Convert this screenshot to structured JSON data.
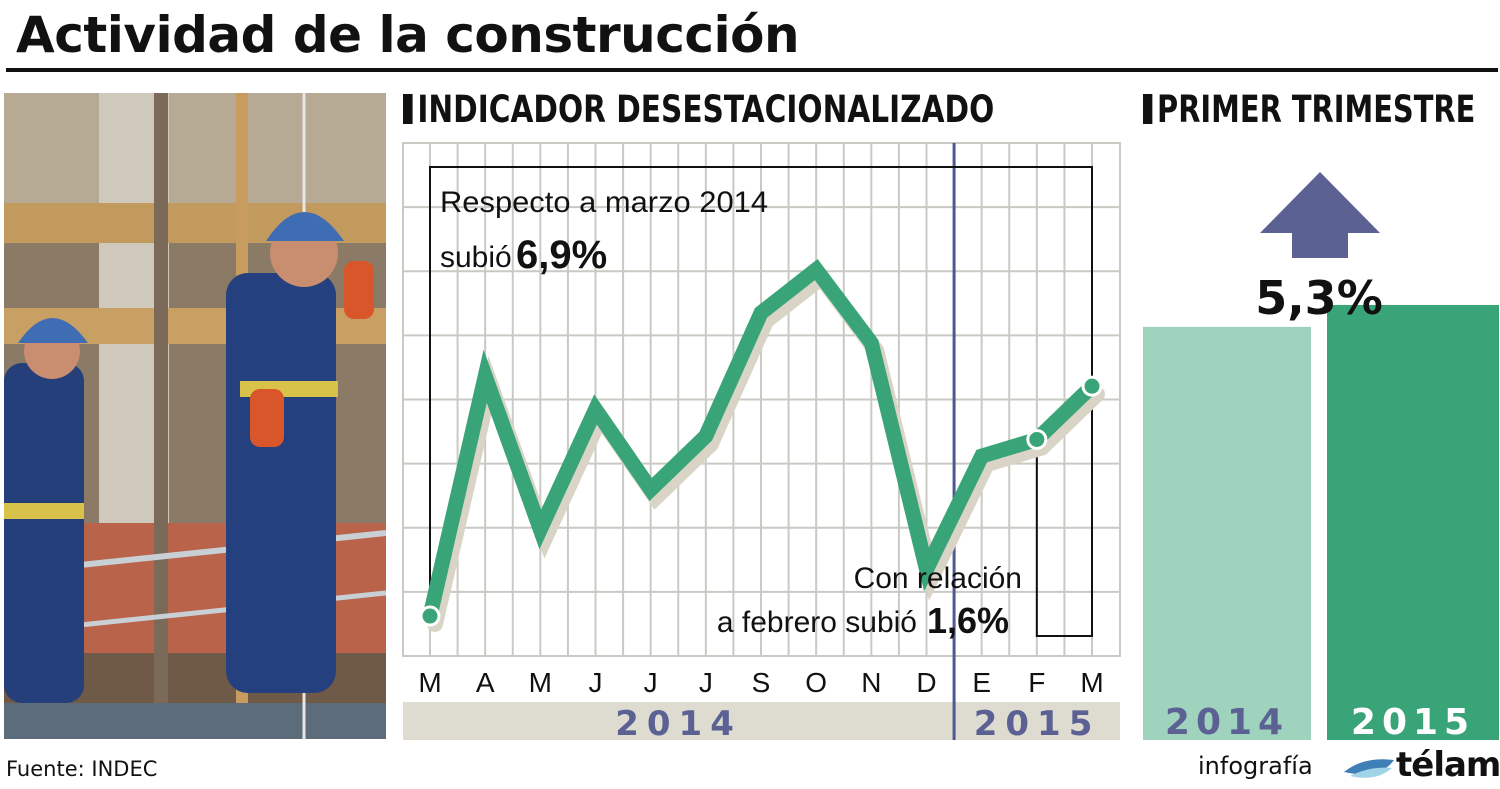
{
  "title": "Actividad de la construcción",
  "source": "Fuente: INDEC",
  "credit": {
    "text": "infografía",
    "brand": "télam"
  },
  "colors": {
    "line": "#3aa479",
    "line_shadow": "#d9d4c6",
    "grid": "#c9cac3",
    "axis_band": "#dedbd0",
    "year_text": "#5b6193",
    "divider": "#4e5891",
    "bar_2014": "#9fd3bd",
    "bar_2015": "#3aa479",
    "arrow": "#5b6193"
  },
  "chart_data": [
    {
      "type": "line",
      "title": "INDICADOR DESESTACIONALIZADO",
      "categories": [
        "M",
        "A",
        "M",
        "J",
        "J",
        "J",
        "S",
        "O",
        "N",
        "D",
        "E",
        "F",
        "M"
      ],
      "years": [
        {
          "label": "2014",
          "start": 0,
          "end": 9
        },
        {
          "label": "2015",
          "start": 10,
          "end": 12
        }
      ],
      "series": [
        {
          "values": [
            100.0,
            107.2,
            102.6,
            106.2,
            103.8,
            105.4,
            109.1,
            110.4,
            108.2,
            101.4,
            104.8,
            105.3,
            106.9
          ]
        }
      ],
      "ylim": [
        98.8,
        114.2
      ],
      "grid": true,
      "annotations": [
        {
          "text": "Respecto a marzo 2014",
          "line2": "subió",
          "value": "6,9%"
        },
        {
          "text": "Con relación",
          "line2": "a febrero subió",
          "value": "1,6%"
        }
      ]
    },
    {
      "type": "bar",
      "title": "PRIMER TRIMESTRE",
      "categories": [
        "2014",
        "2015"
      ],
      "values": [
        100,
        105.3
      ],
      "annotation": "5,3%",
      "ylim": [
        0,
        106.5
      ]
    }
  ]
}
